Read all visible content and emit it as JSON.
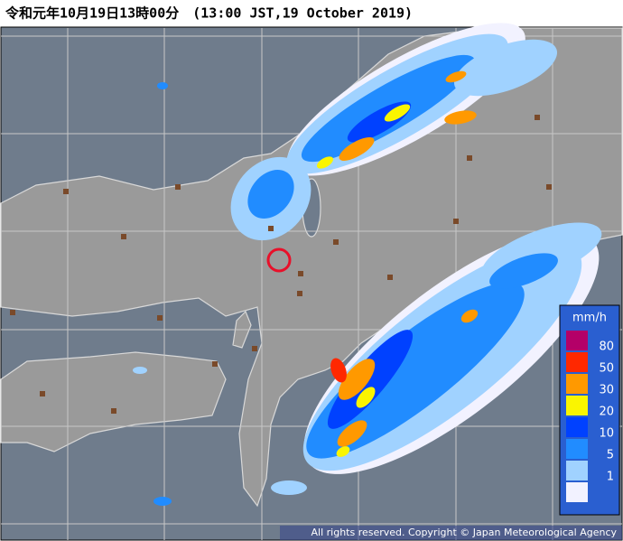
{
  "header": {
    "title": "令和元年10月19日13時00分　(13:00 JST,19 October 2019)"
  },
  "legend": {
    "unit": "mm/h",
    "labels": [
      80,
      50,
      30,
      20,
      10,
      5,
      1
    ],
    "colors": [
      "#b40068",
      "#ff2800",
      "#ff9900",
      "#faf500",
      "#0041ff",
      "#218cff",
      "#a0d2ff",
      "#f2f2ff"
    ]
  },
  "footer": {
    "copyright": "All rights reserved. Copyright © Japan Meteorological Agency"
  }
}
